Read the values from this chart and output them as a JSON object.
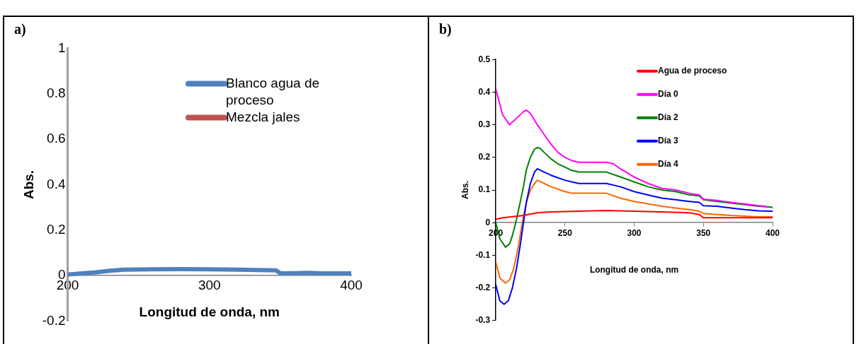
{
  "chart_data": [
    {
      "type": "line",
      "title": "a)",
      "xlabel": "Longitud de onda, nm",
      "ylabel": "Abs.",
      "xlim": [
        200,
        400
      ],
      "xticks": [
        200,
        300,
        400
      ],
      "ylim": [
        -0.2,
        1
      ],
      "yticks": [
        -0.2,
        0,
        0.2,
        0.4,
        0.6,
        0.8,
        1
      ],
      "grid": false,
      "legend": "top right",
      "series": [
        {
          "name": "Blanco agua de proceso",
          "color": "#4f81bd",
          "x": [
            200,
            210,
            220,
            230,
            240,
            260,
            280,
            300,
            320,
            340,
            347,
            350,
            360,
            370,
            380,
            400
          ],
          "values": [
            0.005,
            0.01,
            0.015,
            0.022,
            0.026,
            0.028,
            0.029,
            0.028,
            0.026,
            0.024,
            0.023,
            0.01,
            0.011,
            0.012,
            0.01,
            0.01
          ]
        },
        {
          "name": "Mezcla jales",
          "color": "#c0504d"
        }
      ]
    },
    {
      "type": "line",
      "title": "b)",
      "xlabel": "Longitud de onda, nm",
      "ylabel": "Abs.",
      "xlim": [
        200,
        400
      ],
      "xticks": [
        200,
        250,
        300,
        350,
        400
      ],
      "ylim": [
        -0.3,
        0.5
      ],
      "yticks": [
        -0.3,
        -0.2,
        -0.1,
        0,
        0.1,
        0.2,
        0.3,
        0.4,
        0.5
      ],
      "grid": false,
      "legend": "top right",
      "series": [
        {
          "name": "Agua de proceso",
          "color": "#ff0000",
          "x": [
            200,
            205,
            210,
            220,
            230,
            240,
            260,
            280,
            300,
            320,
            340,
            347,
            350,
            360,
            380,
            400
          ],
          "values": [
            0.01,
            0.015,
            0.017,
            0.022,
            0.03,
            0.033,
            0.035,
            0.037,
            0.035,
            0.033,
            0.03,
            0.025,
            0.015,
            0.015,
            0.015,
            0.015
          ]
        },
        {
          "name": "Día 0",
          "color": "#ff00ff",
          "x": [
            200,
            205,
            210,
            215,
            220,
            222,
            225,
            230,
            235,
            240,
            245,
            250,
            255,
            260,
            270,
            280,
            285,
            290,
            300,
            310,
            320,
            330,
            340,
            347,
            350,
            360,
            370,
            380,
            390,
            395
          ],
          "values": [
            0.41,
            0.33,
            0.3,
            0.32,
            0.34,
            0.345,
            0.335,
            0.3,
            0.27,
            0.24,
            0.215,
            0.2,
            0.19,
            0.185,
            0.185,
            0.185,
            0.18,
            0.165,
            0.14,
            0.12,
            0.105,
            0.1,
            0.09,
            0.085,
            0.072,
            0.068,
            0.062,
            0.057,
            0.052,
            0.05
          ]
        },
        {
          "name": "Día 2",
          "color": "#008000",
          "x": [
            200,
            203,
            207,
            210,
            212,
            215,
            218,
            220,
            222,
            225,
            228,
            230,
            232,
            235,
            240,
            245,
            250,
            255,
            260,
            280,
            290,
            300,
            310,
            320,
            330,
            340,
            347,
            350,
            360,
            370,
            380,
            390,
            400
          ],
          "values": [
            0.0,
            -0.05,
            -0.075,
            -0.065,
            -0.04,
            0.01,
            0.07,
            0.11,
            0.16,
            0.2,
            0.225,
            0.23,
            0.228,
            0.215,
            0.195,
            0.18,
            0.17,
            0.16,
            0.155,
            0.155,
            0.14,
            0.125,
            0.11,
            0.1,
            0.095,
            0.085,
            0.082,
            0.07,
            0.065,
            0.06,
            0.055,
            0.05,
            0.047
          ]
        },
        {
          "name": "Día 3",
          "color": "#0000ff",
          "x": [
            200,
            203,
            206,
            209,
            212,
            215,
            218,
            220,
            222,
            225,
            228,
            230,
            235,
            240,
            250,
            255,
            260,
            280,
            290,
            300,
            310,
            320,
            330,
            340,
            347,
            350,
            360,
            370,
            380,
            390,
            400
          ],
          "values": [
            -0.19,
            -0.24,
            -0.25,
            -0.24,
            -0.2,
            -0.14,
            -0.06,
            0.0,
            0.06,
            0.12,
            0.155,
            0.165,
            0.155,
            0.145,
            0.13,
            0.125,
            0.12,
            0.12,
            0.11,
            0.095,
            0.085,
            0.075,
            0.07,
            0.065,
            0.062,
            0.052,
            0.05,
            0.045,
            0.04,
            0.036,
            0.035
          ]
        },
        {
          "name": "Día 4",
          "color": "#ff6600",
          "x": [
            200,
            203,
            207,
            210,
            213,
            216,
            218,
            220,
            222,
            225,
            228,
            230,
            235,
            240,
            250,
            255,
            280,
            290,
            300,
            310,
            320,
            330,
            340,
            347,
            350,
            360,
            370,
            380,
            390,
            400
          ],
          "values": [
            -0.12,
            -0.17,
            -0.185,
            -0.175,
            -0.14,
            -0.08,
            -0.03,
            0.02,
            0.06,
            0.1,
            0.12,
            0.13,
            0.12,
            0.11,
            0.095,
            0.09,
            0.09,
            0.075,
            0.065,
            0.058,
            0.05,
            0.045,
            0.04,
            0.035,
            0.028,
            0.025,
            0.022,
            0.02,
            0.018,
            0.018
          ]
        }
      ]
    }
  ]
}
